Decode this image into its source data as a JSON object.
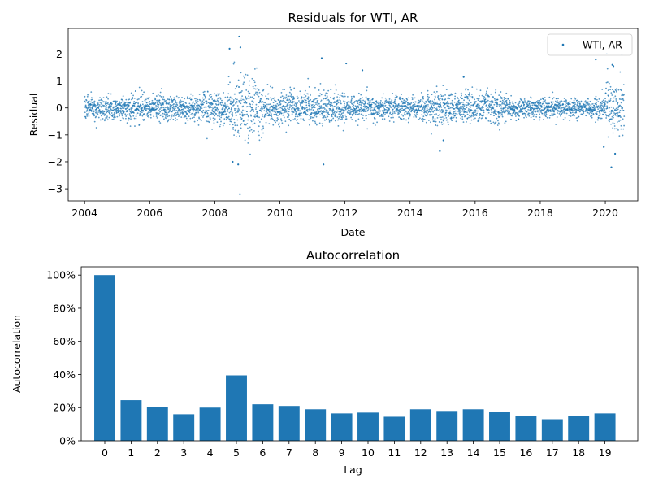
{
  "chart_data": [
    {
      "type": "scatter",
      "title": "Residuals for WTI, AR",
      "xlabel": "Date",
      "ylabel": "Residual",
      "xlim": [
        "2003-07-01",
        "2020-12-31"
      ],
      "ylim": [
        -3.45,
        2.95
      ],
      "xticks": [
        "2004",
        "2006",
        "2008",
        "2010",
        "2012",
        "2014",
        "2016",
        "2018",
        "2020"
      ],
      "yticks": [
        -3,
        -2,
        -1,
        0,
        1,
        2
      ],
      "legend": {
        "position": "top-right",
        "entries": [
          "WTI, AR"
        ]
      },
      "series": [
        {
          "name": "WTI, AR",
          "color": "#1f77b4",
          "marker": "dot",
          "date_range": [
            "2004-01-02",
            "2020-07-31"
          ],
          "volatility_profile": [
            {
              "start": "2004-01-01",
              "end": "2007-06-30",
              "sd": 0.22
            },
            {
              "start": "2007-07-01",
              "end": "2008-05-31",
              "sd": 0.28
            },
            {
              "start": "2008-06-01",
              "end": "2009-06-30",
              "sd": 0.55
            },
            {
              "start": "2009-07-01",
              "end": "2011-12-31",
              "sd": 0.3
            },
            {
              "start": "2012-01-01",
              "end": "2014-06-30",
              "sd": 0.22
            },
            {
              "start": "2014-07-01",
              "end": "2016-12-31",
              "sd": 0.28
            },
            {
              "start": "2017-01-01",
              "end": "2019-12-31",
              "sd": 0.18
            },
            {
              "start": "2020-01-01",
              "end": "2020-07-31",
              "sd": 0.45
            }
          ],
          "notable_points": [
            {
              "x": "2008-10-01",
              "y": 2.65
            },
            {
              "x": "2008-10-15",
              "y": 2.25
            },
            {
              "x": "2008-06-15",
              "y": 2.2
            },
            {
              "x": "2008-10-10",
              "y": -3.2
            },
            {
              "x": "2008-09-20",
              "y": -2.1
            },
            {
              "x": "2008-07-20",
              "y": -2.0
            },
            {
              "x": "2011-05-05",
              "y": -2.1
            },
            {
              "x": "2011-04-15",
              "y": 1.85
            },
            {
              "x": "2012-01-15",
              "y": 1.65
            },
            {
              "x": "2012-07-15",
              "y": 1.4
            },
            {
              "x": "2014-12-01",
              "y": -1.6
            },
            {
              "x": "2015-01-10",
              "y": -1.2
            },
            {
              "x": "2015-08-25",
              "y": 1.15
            },
            {
              "x": "2019-09-16",
              "y": 1.8
            },
            {
              "x": "2019-12-15",
              "y": -1.45
            },
            {
              "x": "2020-03-09",
              "y": -2.2
            },
            {
              "x": "2020-04-01",
              "y": 1.55
            },
            {
              "x": "2020-04-20",
              "y": -1.7
            },
            {
              "x": "2020-03-20",
              "y": 1.6
            }
          ]
        }
      ]
    },
    {
      "type": "bar",
      "title": "Autocorrelation",
      "xlabel": "Lag",
      "ylabel": "Autocorrelation",
      "categories": [
        "0",
        "1",
        "2",
        "3",
        "4",
        "5",
        "6",
        "7",
        "8",
        "9",
        "10",
        "11",
        "12",
        "13",
        "14",
        "15",
        "16",
        "17",
        "18",
        "19"
      ],
      "values": [
        1.0,
        0.245,
        0.205,
        0.16,
        0.2,
        0.395,
        0.22,
        0.21,
        0.19,
        0.165,
        0.17,
        0.145,
        0.19,
        0.18,
        0.19,
        0.175,
        0.15,
        0.13,
        0.15,
        0.165
      ],
      "ylim": [
        0,
        1.05
      ],
      "yticks": [
        "0%",
        "20%",
        "40%",
        "60%",
        "80%",
        "100%"
      ],
      "color": "#1f77b4"
    }
  ]
}
